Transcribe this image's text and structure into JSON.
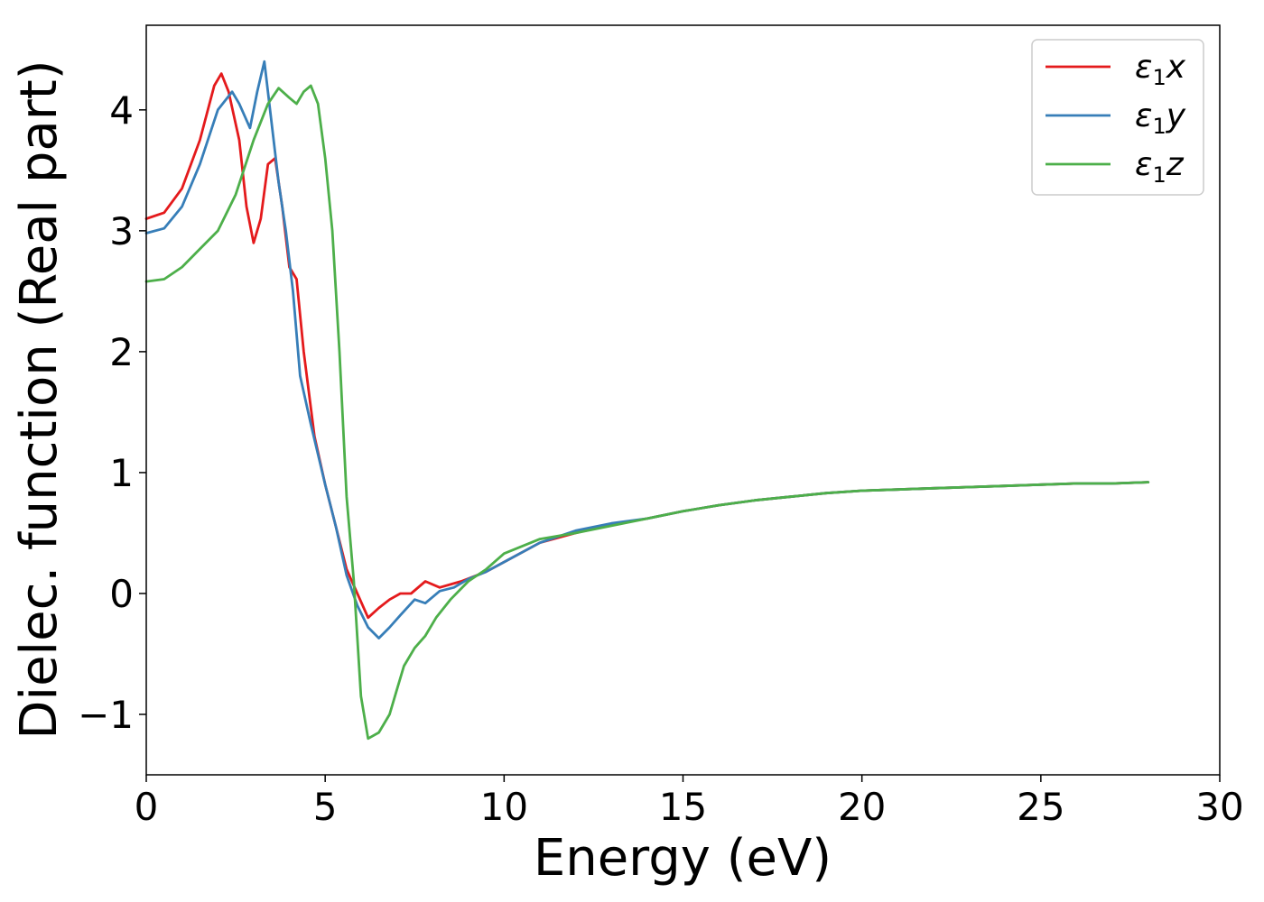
{
  "chart_data": {
    "type": "line",
    "title": "",
    "xlabel": "Energy (eV)",
    "ylabel": "Dielec. function (Real part)",
    "xlim": [
      0,
      30
    ],
    "ylim": [
      -1.5,
      4.7
    ],
    "grid": false,
    "legend_position": "top-right",
    "x_ticks": [
      {
        "value": 0,
        "label": "0"
      },
      {
        "value": 5,
        "label": "5"
      },
      {
        "value": 10,
        "label": "10"
      },
      {
        "value": 15,
        "label": "15"
      },
      {
        "value": 20,
        "label": "20"
      },
      {
        "value": 25,
        "label": "25"
      },
      {
        "value": 30,
        "label": "30"
      }
    ],
    "y_ticks": [
      {
        "value": -1,
        "label": "−1"
      },
      {
        "value": 0,
        "label": "0"
      },
      {
        "value": 1,
        "label": "1"
      },
      {
        "value": 2,
        "label": "2"
      },
      {
        "value": 3,
        "label": "3"
      },
      {
        "value": 4,
        "label": "4"
      }
    ],
    "series": [
      {
        "name": "ε1x",
        "legend_base": "ε",
        "legend_sub": "1",
        "legend_var": "x",
        "color": "#e41a1c",
        "x": [
          0,
          0.5,
          1,
          1.5,
          1.9,
          2.1,
          2.3,
          2.6,
          2.8,
          3.0,
          3.2,
          3.4,
          3.6,
          3.8,
          4.0,
          4.2,
          4.4,
          4.7,
          5.0,
          5.3,
          5.6,
          5.9,
          6.2,
          6.5,
          6.8,
          7.1,
          7.4,
          7.8,
          8.2,
          8.8,
          9.5,
          10,
          11,
          12,
          13,
          14,
          15,
          16,
          17,
          18,
          19,
          20,
          21,
          22,
          23,
          24,
          25,
          26,
          27,
          28
        ],
        "y": [
          3.1,
          3.15,
          3.35,
          3.75,
          4.2,
          4.3,
          4.15,
          3.75,
          3.2,
          2.9,
          3.1,
          3.55,
          3.6,
          3.2,
          2.7,
          2.6,
          2.0,
          1.3,
          0.9,
          0.55,
          0.2,
          0.0,
          -0.2,
          -0.12,
          -0.05,
          0.0,
          0.0,
          0.1,
          0.05,
          0.1,
          0.18,
          0.26,
          0.42,
          0.5,
          0.57,
          0.62,
          0.68,
          0.73,
          0.77,
          0.8,
          0.83,
          0.85,
          0.86,
          0.87,
          0.88,
          0.89,
          0.9,
          0.91,
          0.91,
          0.92
        ]
      },
      {
        "name": "ε1y",
        "legend_base": "ε",
        "legend_sub": "1",
        "legend_var": "y",
        "color": "#377eb8",
        "x": [
          0,
          0.5,
          1,
          1.5,
          2.0,
          2.4,
          2.6,
          2.9,
          3.1,
          3.3,
          3.5,
          3.7,
          3.9,
          4.1,
          4.3,
          4.6,
          5.0,
          5.3,
          5.6,
          5.9,
          6.2,
          6.5,
          6.8,
          7.1,
          7.5,
          7.8,
          8.2,
          8.6,
          9.0,
          9.5,
          10,
          11,
          12,
          13,
          14,
          15,
          16,
          17,
          18,
          19,
          20,
          21,
          22,
          23,
          24,
          25,
          26,
          27,
          28
        ],
        "y": [
          2.98,
          3.02,
          3.2,
          3.55,
          4.0,
          4.15,
          4.05,
          3.85,
          4.15,
          4.4,
          3.9,
          3.4,
          3.0,
          2.5,
          1.8,
          1.4,
          0.9,
          0.55,
          0.15,
          -0.1,
          -0.28,
          -0.37,
          -0.28,
          -0.18,
          -0.05,
          -0.08,
          0.02,
          0.05,
          0.12,
          0.18,
          0.26,
          0.42,
          0.52,
          0.58,
          0.62,
          0.68,
          0.73,
          0.77,
          0.8,
          0.83,
          0.85,
          0.86,
          0.87,
          0.88,
          0.89,
          0.9,
          0.91,
          0.91,
          0.92
        ]
      },
      {
        "name": "ε1z",
        "legend_base": "ε",
        "legend_sub": "1",
        "legend_var": "z",
        "color": "#4daf4a",
        "x": [
          0,
          0.5,
          1,
          1.5,
          2.0,
          2.5,
          3.0,
          3.4,
          3.7,
          4.0,
          4.2,
          4.4,
          4.6,
          4.8,
          5.0,
          5.2,
          5.4,
          5.6,
          5.8,
          6.0,
          6.2,
          6.5,
          6.8,
          7.0,
          7.2,
          7.5,
          7.8,
          8.1,
          8.5,
          9.0,
          9.5,
          10,
          11,
          12,
          13,
          14,
          15,
          16,
          17,
          18,
          19,
          20,
          21,
          22,
          23,
          24,
          25,
          26,
          27,
          28
        ],
        "y": [
          2.58,
          2.6,
          2.7,
          2.85,
          3.0,
          3.3,
          3.75,
          4.05,
          4.18,
          4.1,
          4.05,
          4.15,
          4.2,
          4.05,
          3.6,
          3.0,
          2.0,
          0.8,
          0.1,
          -0.85,
          -1.2,
          -1.15,
          -1.0,
          -0.8,
          -0.6,
          -0.45,
          -0.35,
          -0.2,
          -0.05,
          0.1,
          0.2,
          0.33,
          0.45,
          0.5,
          0.56,
          0.62,
          0.68,
          0.73,
          0.77,
          0.8,
          0.83,
          0.85,
          0.86,
          0.87,
          0.88,
          0.89,
          0.9,
          0.91,
          0.91,
          0.92
        ]
      }
    ]
  }
}
